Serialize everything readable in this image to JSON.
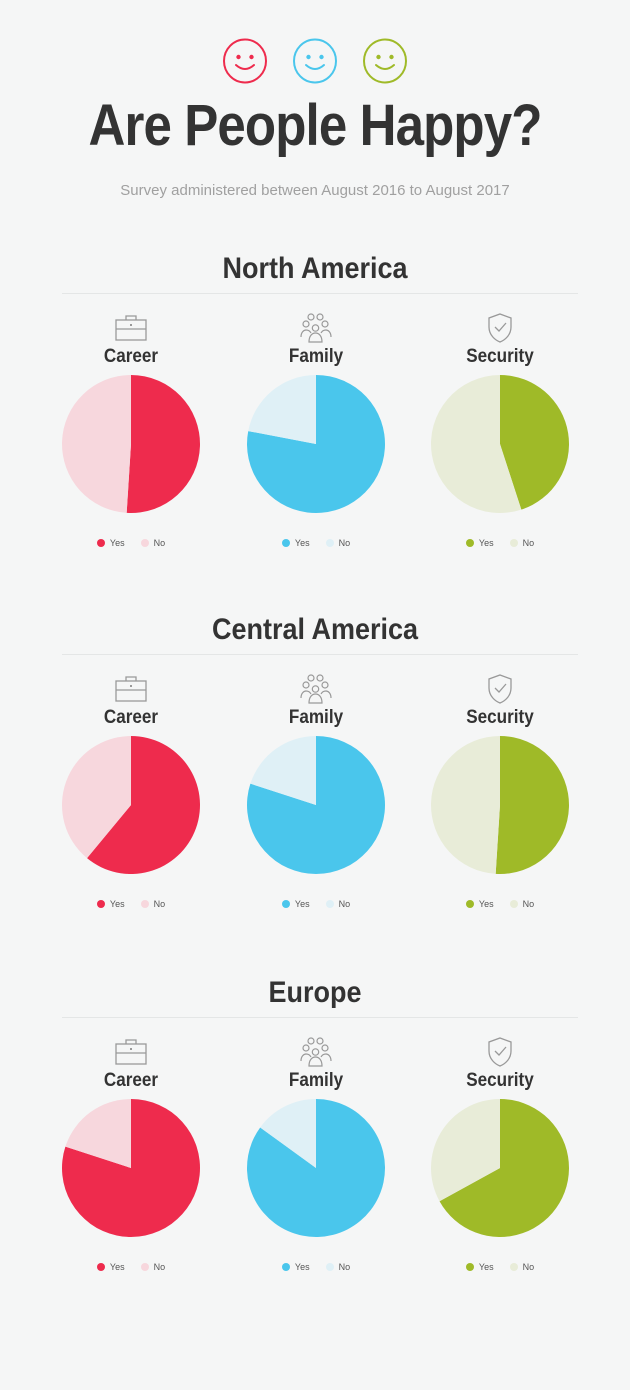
{
  "header": {
    "smileys": [
      {
        "icon": "smiley-icon",
        "color": "#ee2b4d"
      },
      {
        "icon": "smiley-icon",
        "color": "#4ac6ec"
      },
      {
        "icon": "smiley-icon",
        "color": "#9fba28"
      }
    ],
    "title": "Are People Happy?",
    "subtitle": "Survey administered between August 2016 to August 2017"
  },
  "legend": {
    "yes": "Yes",
    "no": "No"
  },
  "categories": [
    {
      "label": "Career",
      "icon": "briefcase-icon",
      "yes_color": "#ee2b4d",
      "no_color": "#f7d7dd"
    },
    {
      "label": "Family",
      "icon": "group-icon",
      "yes_color": "#4ac6ec",
      "no_color": "#dff0f6"
    },
    {
      "label": "Security",
      "icon": "shield-check-icon",
      "yes_color": "#9fba28",
      "no_color": "#e8ecd8"
    }
  ],
  "chart_data": [
    {
      "type": "pie",
      "region": "North America",
      "title": "Career",
      "categories": [
        "Yes",
        "No"
      ],
      "values": [
        51,
        49
      ]
    },
    {
      "type": "pie",
      "region": "North America",
      "title": "Family",
      "categories": [
        "Yes",
        "No"
      ],
      "values": [
        78,
        22
      ]
    },
    {
      "type": "pie",
      "region": "North America",
      "title": "Security",
      "categories": [
        "Yes",
        "No"
      ],
      "values": [
        45,
        55
      ]
    },
    {
      "type": "pie",
      "region": "Central America",
      "title": "Career",
      "categories": [
        "Yes",
        "No"
      ],
      "values": [
        61,
        39
      ]
    },
    {
      "type": "pie",
      "region": "Central America",
      "title": "Family",
      "categories": [
        "Yes",
        "No"
      ],
      "values": [
        80,
        20
      ]
    },
    {
      "type": "pie",
      "region": "Central America",
      "title": "Security",
      "categories": [
        "Yes",
        "No"
      ],
      "values": [
        51,
        49
      ]
    },
    {
      "type": "pie",
      "region": "Europe",
      "title": "Career",
      "categories": [
        "Yes",
        "No"
      ],
      "values": [
        80,
        20
      ]
    },
    {
      "type": "pie",
      "region": "Europe",
      "title": "Family",
      "categories": [
        "Yes",
        "No"
      ],
      "values": [
        85,
        15
      ]
    },
    {
      "type": "pie",
      "region": "Europe",
      "title": "Security",
      "categories": [
        "Yes",
        "No"
      ],
      "values": [
        67,
        33
      ]
    }
  ],
  "regions": [
    "North America",
    "Central America",
    "Europe"
  ]
}
